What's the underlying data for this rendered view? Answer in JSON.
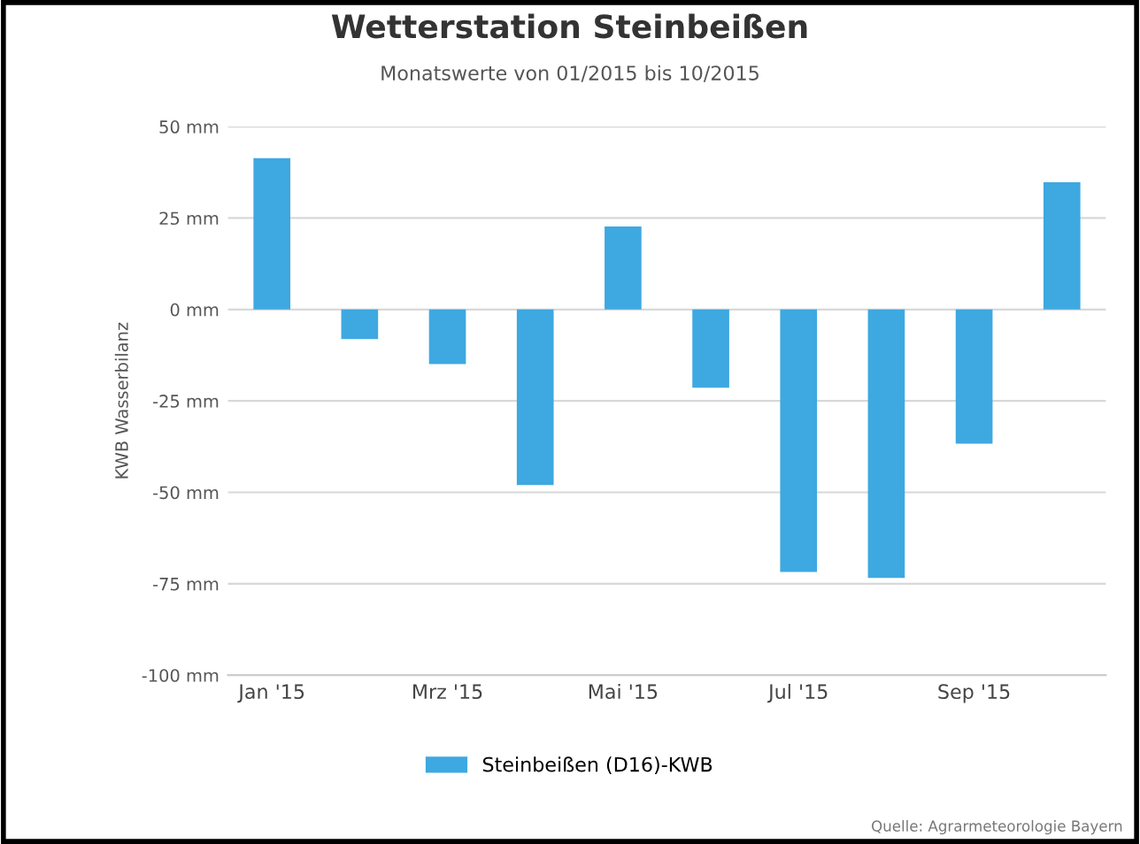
{
  "chart_data": {
    "type": "bar",
    "title": "Wetterstation Steinbeißen",
    "subtitle": "Monatswerte von 01/2015 bis 10/2015",
    "ylabel": "KWB Wasserbilanz",
    "categories": [
      "Jan '15",
      null,
      "Mrz '15",
      null,
      "Mai '15",
      null,
      "Jul '15",
      null,
      "Sep '15",
      null
    ],
    "series": [
      {
        "name": "Steinbeißen (D16)-KWB",
        "color": "#3ea8e0",
        "values": [
          41.4,
          -8.1,
          -14.9,
          -48,
          22.7,
          -21.4,
          -71.8,
          -73.4,
          -36.7,
          34.8
        ]
      }
    ],
    "ylim": [
      -100,
      50
    ],
    "yticks": [
      {
        "value": -100,
        "label": "-100 mm"
      },
      {
        "value": -75,
        "label": "-75 mm"
      },
      {
        "value": -50,
        "label": "-50 mm"
      },
      {
        "value": -25,
        "label": "-25 mm"
      },
      {
        "value": 0,
        "label": "0 mm"
      },
      {
        "value": 25,
        "label": "25 mm"
      },
      {
        "value": 50,
        "label": "50 mm"
      }
    ],
    "grid": "y",
    "legend": "bottom",
    "annotations": [
      "Quelle: Agrarmeteorologie Bayern"
    ]
  }
}
